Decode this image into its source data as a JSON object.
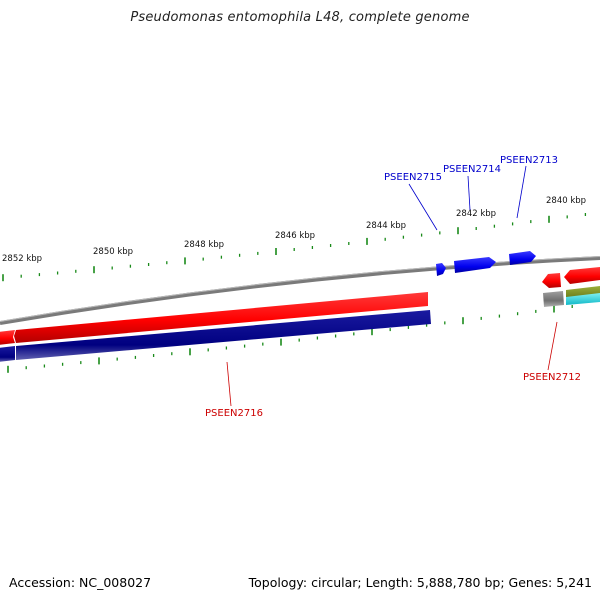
{
  "title": "Pseudomonas entomophila L48, complete genome",
  "footer": {
    "accession": "Accession: NC_008027",
    "summary": "Topology: circular; Length: 5,888,780 bp; Genes: 5,241"
  },
  "colors": {
    "backbone": "#808080",
    "forward_gene": "#ff0000",
    "reverse_gene": "#0000ee",
    "cds_navy": "#000080",
    "tick": "#1a8a1a",
    "label_blue": "#0000cc",
    "label_red": "#cc0000"
  },
  "scale_labels": [
    "2852 kbp",
    "2850 kbp",
    "2848 kbp",
    "2846 kbp",
    "2844 kbp",
    "2842 kbp",
    "2840 kbp"
  ],
  "gene_labels": [
    {
      "id": "PSEEN2715",
      "color": "blue"
    },
    {
      "id": "PSEEN2714",
      "color": "blue"
    },
    {
      "id": "PSEEN2713",
      "color": "blue"
    },
    {
      "id": "PSEEN2712",
      "color": "red"
    },
    {
      "id": "PSEEN2716",
      "color": "red"
    }
  ]
}
